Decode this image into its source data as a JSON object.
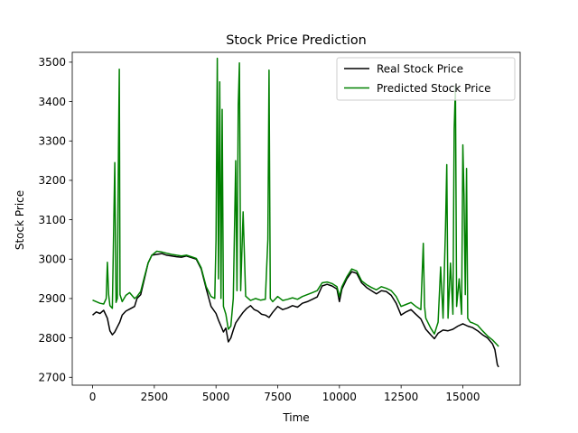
{
  "chart_data": {
    "type": "line",
    "title": "Stock Price Prediction",
    "xlabel": "Time",
    "ylabel": "Stock Price",
    "xlim": [
      -825,
      17325
    ],
    "ylim": [
      2680,
      3525
    ],
    "xticks": [
      0,
      2500,
      5000,
      7500,
      10000,
      12500,
      15000
    ],
    "yticks": [
      2700,
      2800,
      2900,
      3000,
      3100,
      3200,
      3300,
      3400,
      3500
    ],
    "xtick_labels": [
      "0",
      "2500",
      "5000",
      "7500",
      "10000",
      "12500",
      "15000"
    ],
    "ytick_labels": [
      "2700",
      "2800",
      "2900",
      "3000",
      "3100",
      "3200",
      "3300",
      "3400",
      "3500"
    ],
    "grid": false,
    "legend_position": "top-right",
    "series": [
      {
        "name": "Real Stock Price",
        "color": "#000000",
        "points": [
          [
            0,
            2858
          ],
          [
            150,
            2866
          ],
          [
            300,
            2862
          ],
          [
            450,
            2870
          ],
          [
            600,
            2850
          ],
          [
            700,
            2818
          ],
          [
            800,
            2808
          ],
          [
            900,
            2815
          ],
          [
            1000,
            2828
          ],
          [
            1100,
            2840
          ],
          [
            1200,
            2858
          ],
          [
            1350,
            2868
          ],
          [
            1500,
            2873
          ],
          [
            1700,
            2880
          ],
          [
            1800,
            2900
          ],
          [
            1950,
            2910
          ],
          [
            2100,
            2950
          ],
          [
            2250,
            2990
          ],
          [
            2400,
            3010
          ],
          [
            2600,
            3012
          ],
          [
            2800,
            3014
          ],
          [
            3000,
            3010
          ],
          [
            3200,
            3008
          ],
          [
            3400,
            3006
          ],
          [
            3600,
            3005
          ],
          [
            3800,
            3008
          ],
          [
            4000,
            3004
          ],
          [
            4200,
            3000
          ],
          [
            4400,
            2975
          ],
          [
            4600,
            2925
          ],
          [
            4800,
            2880
          ],
          [
            5000,
            2862
          ],
          [
            5100,
            2845
          ],
          [
            5200,
            2830
          ],
          [
            5300,
            2815
          ],
          [
            5400,
            2825
          ],
          [
            5500,
            2790
          ],
          [
            5600,
            2800
          ],
          [
            5700,
            2820
          ],
          [
            5800,
            2838
          ],
          [
            5950,
            2852
          ],
          [
            6100,
            2865
          ],
          [
            6250,
            2875
          ],
          [
            6400,
            2882
          ],
          [
            6550,
            2872
          ],
          [
            6700,
            2868
          ],
          [
            6850,
            2860
          ],
          [
            7000,
            2858
          ],
          [
            7150,
            2852
          ],
          [
            7300,
            2865
          ],
          [
            7500,
            2880
          ],
          [
            7700,
            2872
          ],
          [
            7900,
            2876
          ],
          [
            8100,
            2882
          ],
          [
            8300,
            2878
          ],
          [
            8500,
            2888
          ],
          [
            8700,
            2892
          ],
          [
            8900,
            2898
          ],
          [
            9100,
            2904
          ],
          [
            9300,
            2932
          ],
          [
            9500,
            2936
          ],
          [
            9700,
            2932
          ],
          [
            9900,
            2924
          ],
          [
            10000,
            2892
          ],
          [
            10100,
            2924
          ],
          [
            10300,
            2950
          ],
          [
            10500,
            2968
          ],
          [
            10700,
            2964
          ],
          [
            10900,
            2940
          ],
          [
            11100,
            2928
          ],
          [
            11300,
            2920
          ],
          [
            11500,
            2912
          ],
          [
            11700,
            2920
          ],
          [
            11900,
            2918
          ],
          [
            12100,
            2908
          ],
          [
            12300,
            2888
          ],
          [
            12500,
            2858
          ],
          [
            12700,
            2866
          ],
          [
            12900,
            2872
          ],
          [
            13100,
            2860
          ],
          [
            13300,
            2848
          ],
          [
            13500,
            2822
          ],
          [
            13700,
            2808
          ],
          [
            13850,
            2798
          ],
          [
            14000,
            2812
          ],
          [
            14200,
            2820
          ],
          [
            14400,
            2818
          ],
          [
            14600,
            2822
          ],
          [
            14800,
            2830
          ],
          [
            15000,
            2836
          ],
          [
            15200,
            2830
          ],
          [
            15400,
            2826
          ],
          [
            15600,
            2818
          ],
          [
            15800,
            2808
          ],
          [
            16000,
            2800
          ],
          [
            16200,
            2785
          ],
          [
            16300,
            2770
          ],
          [
            16400,
            2732
          ],
          [
            16450,
            2726
          ]
        ]
      },
      {
        "name": "Predicted Stock Price",
        "color": "#008000",
        "points": [
          [
            0,
            2896
          ],
          [
            150,
            2892
          ],
          [
            300,
            2888
          ],
          [
            450,
            2886
          ],
          [
            550,
            2900
          ],
          [
            600,
            2992
          ],
          [
            650,
            2910
          ],
          [
            700,
            2882
          ],
          [
            800,
            2875
          ],
          [
            900,
            3245
          ],
          [
            950,
            2890
          ],
          [
            1000,
            2900
          ],
          [
            1050,
            3280
          ],
          [
            1080,
            3482
          ],
          [
            1110,
            2910
          ],
          [
            1200,
            2892
          ],
          [
            1350,
            2908
          ],
          [
            1500,
            2915
          ],
          [
            1700,
            2900
          ],
          [
            1800,
            2905
          ],
          [
            1950,
            2918
          ],
          [
            2100,
            2955
          ],
          [
            2250,
            2990
          ],
          [
            2400,
            3010
          ],
          [
            2600,
            3020
          ],
          [
            2800,
            3018
          ],
          [
            3000,
            3015
          ],
          [
            3200,
            3012
          ],
          [
            3400,
            3010
          ],
          [
            3600,
            3008
          ],
          [
            3800,
            3010
          ],
          [
            4000,
            3006
          ],
          [
            4200,
            3002
          ],
          [
            4400,
            2978
          ],
          [
            4600,
            2930
          ],
          [
            4800,
            2905
          ],
          [
            4950,
            2900
          ],
          [
            5000,
            3050
          ],
          [
            5050,
            3510
          ],
          [
            5100,
            2950
          ],
          [
            5150,
            3450
          ],
          [
            5200,
            2900
          ],
          [
            5250,
            3380
          ],
          [
            5300,
            2880
          ],
          [
            5400,
            2860
          ],
          [
            5500,
            2822
          ],
          [
            5600,
            2830
          ],
          [
            5700,
            2900
          ],
          [
            5800,
            3250
          ],
          [
            5850,
            2920
          ],
          [
            5900,
            3390
          ],
          [
            5950,
            3498
          ],
          [
            6000,
            2920
          ],
          [
            6100,
            3120
          ],
          [
            6200,
            2906
          ],
          [
            6400,
            2895
          ],
          [
            6600,
            2900
          ],
          [
            6800,
            2896
          ],
          [
            7000,
            2898
          ],
          [
            7100,
            3050
          ],
          [
            7150,
            3480
          ],
          [
            7200,
            2900
          ],
          [
            7300,
            2892
          ],
          [
            7500,
            2905
          ],
          [
            7700,
            2895
          ],
          [
            7900,
            2898
          ],
          [
            8100,
            2902
          ],
          [
            8300,
            2898
          ],
          [
            8500,
            2905
          ],
          [
            8700,
            2910
          ],
          [
            8900,
            2915
          ],
          [
            9100,
            2920
          ],
          [
            9300,
            2940
          ],
          [
            9500,
            2942
          ],
          [
            9700,
            2938
          ],
          [
            9900,
            2930
          ],
          [
            10000,
            2905
          ],
          [
            10100,
            2930
          ],
          [
            10300,
            2955
          ],
          [
            10500,
            2975
          ],
          [
            10700,
            2970
          ],
          [
            10900,
            2945
          ],
          [
            11100,
            2935
          ],
          [
            11300,
            2928
          ],
          [
            11500,
            2922
          ],
          [
            11700,
            2930
          ],
          [
            11900,
            2926
          ],
          [
            12100,
            2920
          ],
          [
            12300,
            2905
          ],
          [
            12500,
            2880
          ],
          [
            12700,
            2885
          ],
          [
            12900,
            2890
          ],
          [
            13100,
            2880
          ],
          [
            13300,
            2872
          ],
          [
            13350,
            2960
          ],
          [
            13400,
            3040
          ],
          [
            13450,
            2880
          ],
          [
            13500,
            2850
          ],
          [
            13700,
            2825
          ],
          [
            13850,
            2810
          ],
          [
            14000,
            2840
          ],
          [
            14100,
            2980
          ],
          [
            14200,
            2850
          ],
          [
            14300,
            3080
          ],
          [
            14350,
            3240
          ],
          [
            14400,
            2850
          ],
          [
            14500,
            2990
          ],
          [
            14600,
            2860
          ],
          [
            14650,
            3330
          ],
          [
            14700,
            3440
          ],
          [
            14750,
            2880
          ],
          [
            14850,
            2950
          ],
          [
            14950,
            2860
          ],
          [
            15000,
            3290
          ],
          [
            15050,
            3160
          ],
          [
            15100,
            2910
          ],
          [
            15150,
            3230
          ],
          [
            15200,
            2850
          ],
          [
            15300,
            2840
          ],
          [
            15400,
            2838
          ],
          [
            15600,
            2832
          ],
          [
            15800,
            2818
          ],
          [
            16000,
            2805
          ],
          [
            16200,
            2795
          ],
          [
            16400,
            2782
          ],
          [
            16450,
            2778
          ]
        ]
      }
    ]
  }
}
